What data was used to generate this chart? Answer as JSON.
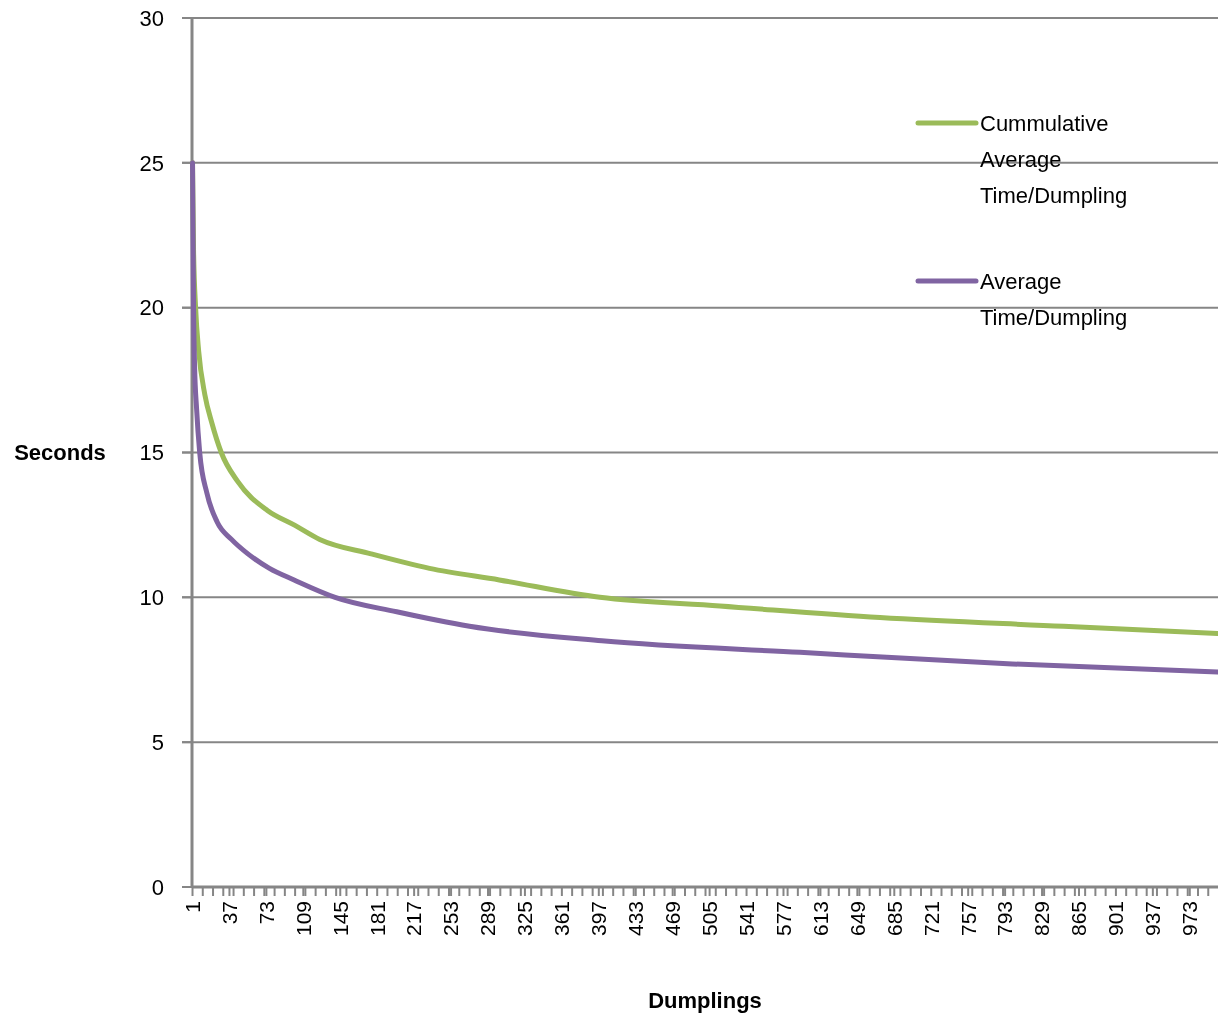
{
  "chart_data": {
    "type": "line",
    "xlabel": "Dumplings",
    "ylabel": "Seconds",
    "xlim": [
      0.5,
      1000.5
    ],
    "ylim": [
      0,
      30
    ],
    "yticks": [
      0,
      5,
      10,
      15,
      20,
      25,
      30
    ],
    "xticks": [
      1,
      37,
      73,
      109,
      145,
      181,
      217,
      253,
      289,
      325,
      361,
      397,
      433,
      469,
      505,
      541,
      577,
      613,
      649,
      685,
      721,
      757,
      793,
      829,
      865,
      901,
      937,
      973,
      {
        "value": 11,
        "label": null
      },
      {
        "value": 21,
        "label": null
      },
      {
        "value": 31,
        "label": null
      },
      {
        "value": 41,
        "label": null
      },
      {
        "value": 51,
        "label": null
      },
      {
        "value": 61,
        "label": null
      },
      {
        "value": 71,
        "label": null
      },
      {
        "value": 81,
        "label": null
      },
      {
        "value": 91,
        "label": null
      },
      {
        "value": 101,
        "label": null
      },
      {
        "value": 111,
        "label": null
      },
      {
        "value": 121,
        "label": null
      },
      {
        "value": 131,
        "label": null
      },
      {
        "value": 141,
        "label": null
      },
      {
        "value": 151,
        "label": null
      },
      {
        "value": 161,
        "label": null
      },
      {
        "value": 171,
        "label": null
      },
      {
        "value": 191,
        "label": null
      },
      {
        "value": 201,
        "label": null
      },
      {
        "value": 211,
        "label": null
      },
      {
        "value": 221,
        "label": null
      },
      {
        "value": 231,
        "label": null
      },
      {
        "value": 241,
        "label": null
      },
      {
        "value": 251,
        "label": null
      },
      {
        "value": 261,
        "label": null
      },
      {
        "value": 271,
        "label": null
      },
      {
        "value": 281,
        "label": null
      },
      {
        "value": 291,
        "label": null
      },
      {
        "value": 301,
        "label": null
      },
      {
        "value": 311,
        "label": null
      },
      {
        "value": 321,
        "label": null
      },
      {
        "value": 331,
        "label": null
      },
      {
        "value": 341,
        "label": null
      },
      {
        "value": 351,
        "label": null
      },
      {
        "value": 371,
        "label": null
      },
      {
        "value": 381,
        "label": null
      },
      {
        "value": 391,
        "label": null
      },
      {
        "value": 401,
        "label": null
      },
      {
        "value": 411,
        "label": null
      },
      {
        "value": 421,
        "label": null
      },
      {
        "value": 431,
        "label": null
      },
      {
        "value": 441,
        "label": null
      },
      {
        "value": 451,
        "label": null
      },
      {
        "value": 461,
        "label": null
      },
      {
        "value": 471,
        "label": null
      },
      {
        "value": 481,
        "label": null
      },
      {
        "value": 491,
        "label": null
      },
      {
        "value": 501,
        "label": null
      },
      {
        "value": 511,
        "label": null
      },
      {
        "value": 521,
        "label": null
      },
      {
        "value": 531,
        "label": null
      },
      {
        "value": 551,
        "label": null
      },
      {
        "value": 561,
        "label": null
      },
      {
        "value": 571,
        "label": null
      },
      {
        "value": 581,
        "label": null
      },
      {
        "value": 591,
        "label": null
      },
      {
        "value": 601,
        "label": null
      },
      {
        "value": 611,
        "label": null
      },
      {
        "value": 621,
        "label": null
      },
      {
        "value": 631,
        "label": null
      },
      {
        "value": 641,
        "label": null
      },
      {
        "value": 651,
        "label": null
      },
      {
        "value": 661,
        "label": null
      },
      {
        "value": 671,
        "label": null
      },
      {
        "value": 681,
        "label": null
      },
      {
        "value": 691,
        "label": null
      },
      {
        "value": 701,
        "label": null
      },
      {
        "value": 711,
        "label": null
      },
      {
        "value": 731,
        "label": null
      },
      {
        "value": 741,
        "label": null
      },
      {
        "value": 751,
        "label": null
      },
      {
        "value": 761,
        "label": null
      },
      {
        "value": 771,
        "label": null
      },
      {
        "value": 781,
        "label": null
      },
      {
        "value": 791,
        "label": null
      },
      {
        "value": 801,
        "label": null
      },
      {
        "value": 811,
        "label": null
      },
      {
        "value": 821,
        "label": null
      },
      {
        "value": 831,
        "label": null
      },
      {
        "value": 841,
        "label": null
      },
      {
        "value": 851,
        "label": null
      },
      {
        "value": 861,
        "label": null
      },
      {
        "value": 871,
        "label": null
      },
      {
        "value": 881,
        "label": null
      },
      {
        "value": 891,
        "label": null
      },
      {
        "value": 911,
        "label": null
      },
      {
        "value": 921,
        "label": null
      },
      {
        "value": 931,
        "label": null
      },
      {
        "value": 941,
        "label": null
      },
      {
        "value": 951,
        "label": null
      },
      {
        "value": 961,
        "label": null
      },
      {
        "value": 971,
        "label": null
      },
      {
        "value": 981,
        "label": null
      },
      {
        "value": 991,
        "label": null
      }
    ],
    "grid": "y",
    "legend": "right",
    "marker": "none",
    "line_style": "solid",
    "series": [
      {
        "name": "Cummulative Average Time/Dumpling",
        "color": "#9bbb59",
        "x": [
          1,
          2,
          4,
          7,
          13,
          20,
          29,
          45,
          74,
          100,
          125,
          175,
          232,
          300,
          398,
          515,
          671,
          850,
          1000
        ],
        "values": [
          25,
          22,
          20,
          18.5,
          17,
          16,
          15,
          14,
          13,
          12.5,
          12,
          11.5,
          11,
          10.6,
          10,
          9.7,
          9.3,
          9,
          8.75
        ]
      },
      {
        "name": "Average Time/Dumpling",
        "color": "#8064a2",
        "x": [
          1,
          2,
          3,
          5,
          8,
          15,
          25,
          39,
          55,
          76,
          100,
          140,
          200,
          271,
          400,
          593,
          800,
          1000
        ],
        "values": [
          25,
          20,
          18,
          16.5,
          15,
          13.6,
          12.6,
          12,
          11.5,
          11,
          10.6,
          10,
          9.5,
          9,
          8.5,
          8.1,
          7.7,
          7.42
        ]
      }
    ]
  }
}
